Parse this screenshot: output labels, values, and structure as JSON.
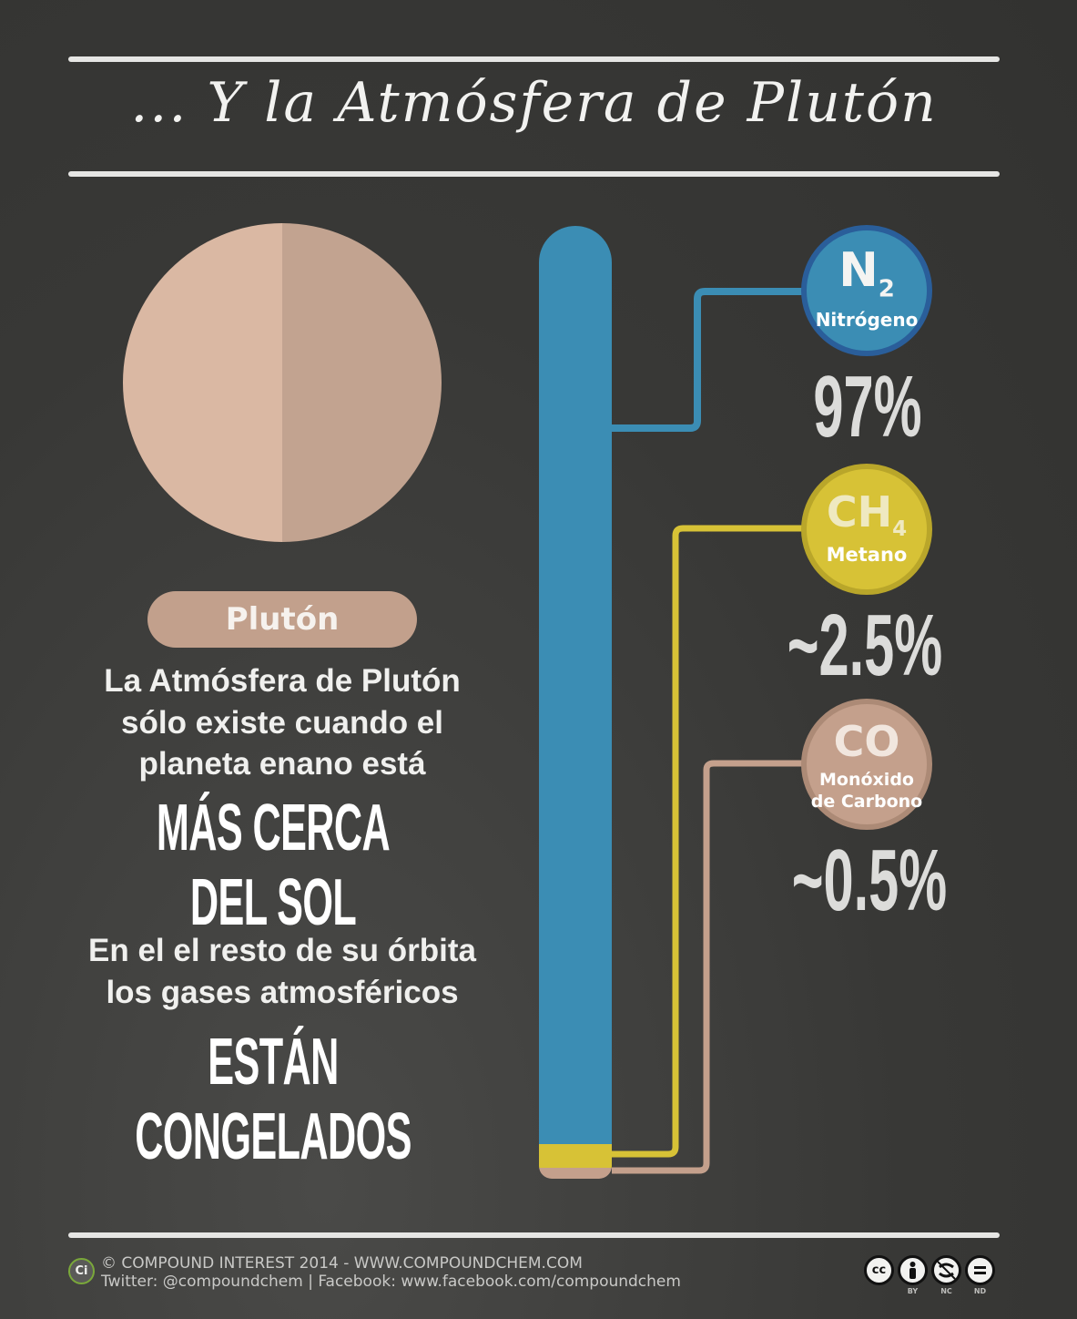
{
  "title": "... Y la Atmósfera de Plutón",
  "planet": {
    "label": "Plutón"
  },
  "text": {
    "line1": "La Atmósfera de Plutón",
    "line2": "sólo existe cuando el",
    "line3": "planeta enano está",
    "emph1": "MÁS CERCA DEL SOL",
    "line4": "En el el resto de su órbita",
    "line5": "los gases atmosféricos",
    "emph2": "ESTÁN CONGELADOS"
  },
  "gases": [
    {
      "symbol": "N",
      "subscript": "2",
      "name": "Nitrógeno",
      "percent": "97%",
      "color": "#3b8db4",
      "value": 97
    },
    {
      "symbol": "CH",
      "subscript": "4",
      "name": "Metano",
      "percent": "~2.5%",
      "color": "#d7c236",
      "value": 2.5
    },
    {
      "symbol": "CO",
      "subscript": "",
      "name_line1": "Monóxido",
      "name_line2": "de Carbono",
      "percent": "~0.5%",
      "color": "#c4a08c",
      "value": 0.5
    }
  ],
  "footer": {
    "logo": "Ci",
    "line1": "© COMPOUND INTEREST 2014 - WWW.COMPOUNDCHEM.COM",
    "line2": "Twitter: @compoundchem | Facebook: www.facebook.com/compoundchem",
    "license": [
      {
        "icon": "cc",
        "label": ""
      },
      {
        "icon": "person-icon",
        "label": "BY"
      },
      {
        "icon": "no-dollar-icon",
        "label": "NC"
      },
      {
        "icon": "equals-icon",
        "label": "ND"
      }
    ]
  }
}
